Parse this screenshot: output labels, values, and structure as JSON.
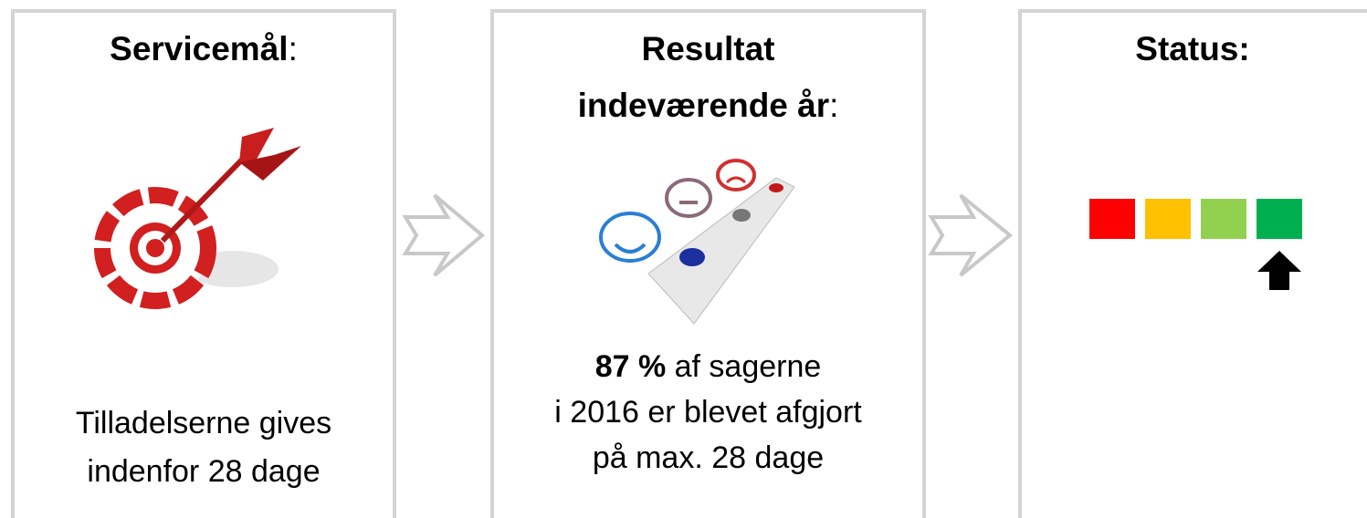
{
  "boxes": [
    {
      "title": [
        [
          {
            "text": "Servicemål",
            "bold": true
          },
          {
            "text": ":",
            "bold": false
          }
        ]
      ],
      "body": [
        [
          {
            "text": "Tilladelserne gives",
            "bold": false
          }
        ],
        [
          {
            "text": "indenfor 28 dage",
            "bold": false
          }
        ]
      ]
    },
    {
      "title": [
        [
          {
            "text": "Resultat",
            "bold": true
          }
        ],
        [
          {
            "text": "indeværende år",
            "bold": true
          },
          {
            "text": ":",
            "bold": false
          }
        ]
      ],
      "body": [
        [
          {
            "text": "87 %",
            "bold": true
          },
          {
            "text": " af sagerne",
            "bold": false
          }
        ],
        [
          {
            "text": "i 2016 er blevet afgjort",
            "bold": false
          }
        ],
        [
          {
            "text": "på max. 28 dage",
            "bold": false
          }
        ]
      ]
    },
    {
      "title": [
        [
          {
            "text": "Status:",
            "bold": true
          }
        ]
      ],
      "body": []
    }
  ],
  "status": {
    "levels": [
      {
        "color": "#ff0000"
      },
      {
        "color": "#ffc000"
      },
      {
        "color": "#92d050"
      },
      {
        "color": "#00b050"
      }
    ],
    "current": 3
  }
}
